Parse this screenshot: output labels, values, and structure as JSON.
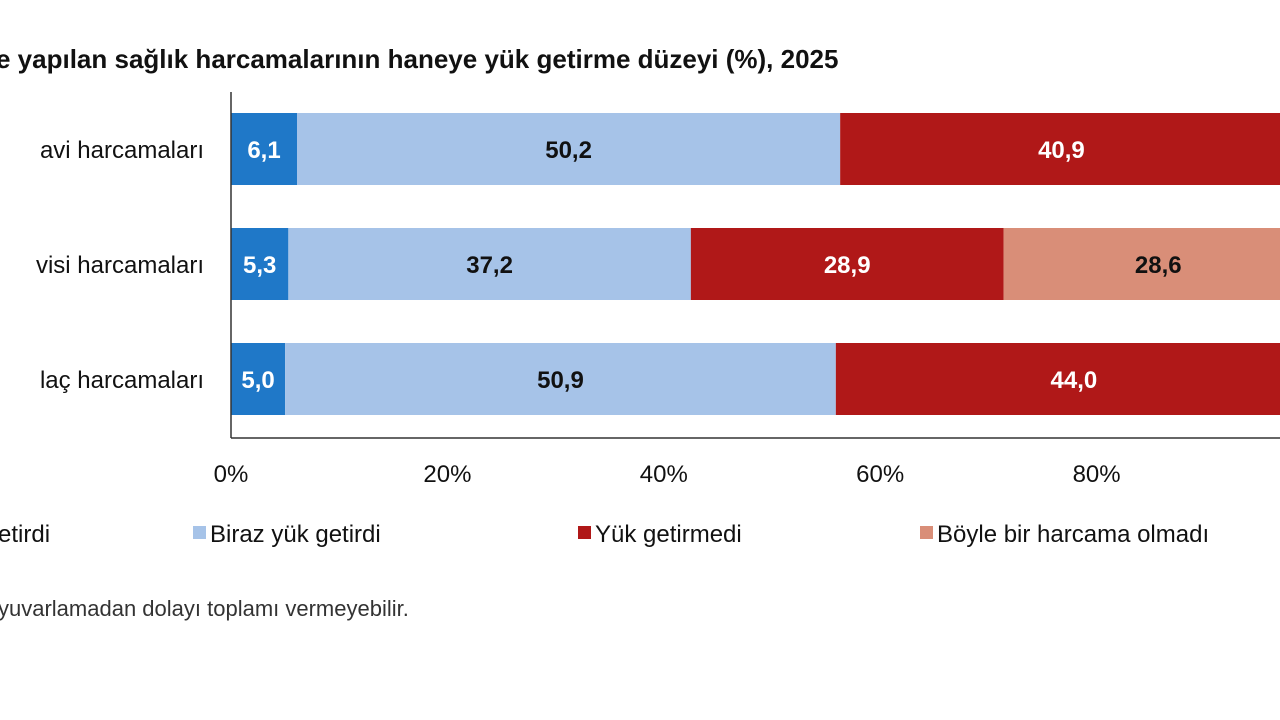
{
  "page": {
    "title": "e yapılan sağlık harcamalarının haneye yük getirme düzeyi (%), 2025",
    "note": "yuvarlamadan dolayı toplamı vermeyebilir."
  },
  "chart_data": {
    "type": "bar",
    "orientation": "horizontal",
    "stacked": true,
    "categories": [
      "avi harcamaları",
      "visi harcamaları",
      "laç harcamaları"
    ],
    "series": [
      {
        "name": "etirdi",
        "color": "#1F78C8",
        "label_color": "#ffffff",
        "values": [
          6.1,
          5.3,
          5.0
        ],
        "labels": [
          "6,1",
          "5,3",
          "5,0"
        ]
      },
      {
        "name": "Biraz yük getirdi",
        "color": "#A6C3E8",
        "label_color": "#111111",
        "values": [
          50.2,
          37.2,
          50.9
        ],
        "labels": [
          "50,2",
          "37,2",
          "50,9"
        ]
      },
      {
        "name": "Yük getirmedi",
        "color": "#B01818",
        "label_color": "#ffffff",
        "values": [
          40.9,
          28.9,
          44.0
        ],
        "labels": [
          "40,9",
          "28,9",
          "44,0"
        ]
      },
      {
        "name": "Böyle bir harcama olmadı",
        "color": "#D98E78",
        "label_color": "#111111",
        "values": [
          0,
          28.6,
          0
        ],
        "labels": [
          "",
          "28,6",
          ""
        ]
      }
    ],
    "x_ticks": [
      "0%",
      "20%",
      "40%",
      "60%",
      "80%"
    ],
    "x_tick_values": [
      0,
      20,
      40,
      60,
      80
    ],
    "xlim": [
      0,
      100
    ],
    "grid": false,
    "legend_position": "bottom"
  }
}
